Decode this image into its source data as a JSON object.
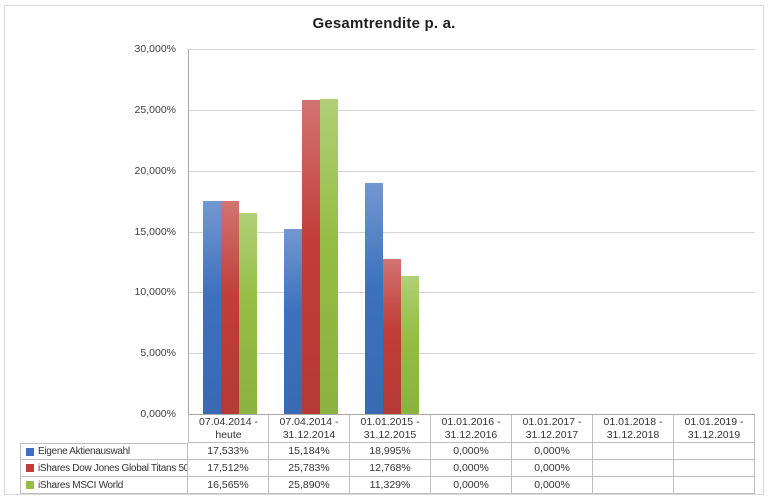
{
  "title": "Gesamtrendite p. a.",
  "colors": {
    "series": [
      "#3D70BE",
      "#C13D39",
      "#94BD43"
    ],
    "gridline": "#D4D4D4",
    "axis_line": "#A6A6A6",
    "table_border": "#BFBFBF",
    "frame_border": "#D9D9D9",
    "text": "#3F3F3F",
    "background": "#FFFFFF"
  },
  "chart_data": {
    "type": "bar",
    "title": "Gesamtrendite p. a.",
    "categories": [
      "07.04.2014 - heute",
      "07.04.2014 - 31.12.2014",
      "01.01.2015 - 31.12.2015",
      "01.01.2016 - 31.12.2016",
      "01.01.2017 - 31.12.2017",
      "01.01.2018 - 31.12.2018",
      "01.01.2019 - 31.12.2019"
    ],
    "series": [
      {
        "name": "Eigene Aktienauswahl",
        "color": "#3D70BE",
        "values": [
          17.533,
          15.184,
          18.995,
          0,
          0,
          null,
          null
        ],
        "cell_labels": [
          "17,533%",
          "15,184%",
          "18,995%",
          "0,000%",
          "0,000%",
          "",
          ""
        ]
      },
      {
        "name": "iShares Dow Jones Global Titans 50",
        "color": "#C13D39",
        "values": [
          17.512,
          25.783,
          12.768,
          0,
          0,
          null,
          null
        ],
        "cell_labels": [
          "17,512%",
          "25,783%",
          "12,768%",
          "0,000%",
          "0,000%",
          "",
          ""
        ]
      },
      {
        "name": "iShares MSCI World",
        "color": "#94BD43",
        "values": [
          16.565,
          25.89,
          11.329,
          0,
          0,
          null,
          null
        ],
        "cell_labels": [
          "16,565%",
          "25,890%",
          "11,329%",
          "0,000%",
          "0,000%",
          "",
          ""
        ]
      }
    ],
    "ylim": [
      0,
      30
    ],
    "ytick_step": 5,
    "ytick_labels": [
      "0,000%",
      "5,000%",
      "10,000%",
      "15,000%",
      "20,000%",
      "25,000%",
      "30,000%"
    ],
    "xlabel": "",
    "ylabel": "",
    "grid": true,
    "legend_position": "data-table-left",
    "data_table_shown": true
  }
}
